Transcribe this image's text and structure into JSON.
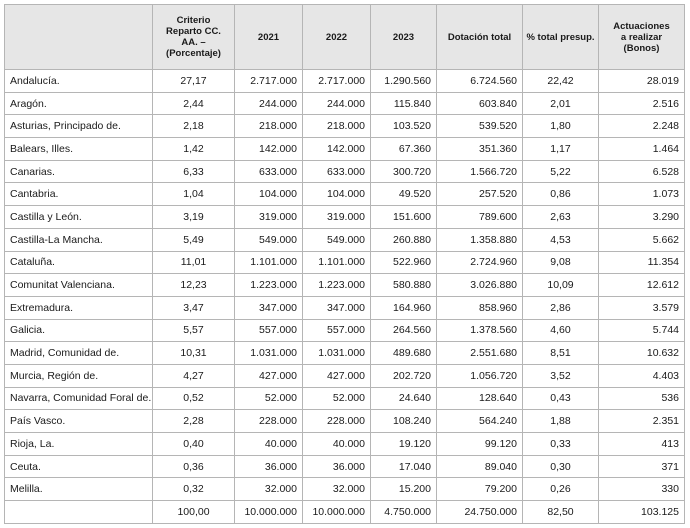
{
  "headers": {
    "region": "",
    "criterio": "Criterio Reparto CC. AA. – (Porcentaje)",
    "y2021": "2021",
    "y2022": "2022",
    "y2023": "2023",
    "dotacion": "Dotación total",
    "pct": "% total presup.",
    "actuaciones": "Actuaciones a realizar (Bonos)"
  },
  "rows": [
    [
      "Andalucía.",
      "27,17",
      "2.717.000",
      "2.717.000",
      "1.290.560",
      "6.724.560",
      "22,42",
      "28.019"
    ],
    [
      "Aragón.",
      "2,44",
      "244.000",
      "244.000",
      "115.840",
      "603.840",
      "2,01",
      "2.516"
    ],
    [
      "Asturias, Principado de.",
      "2,18",
      "218.000",
      "218.000",
      "103.520",
      "539.520",
      "1,80",
      "2.248"
    ],
    [
      "Balears, Illes.",
      "1,42",
      "142.000",
      "142.000",
      "67.360",
      "351.360",
      "1,17",
      "1.464"
    ],
    [
      "Canarias.",
      "6,33",
      "633.000",
      "633.000",
      "300.720",
      "1.566.720",
      "5,22",
      "6.528"
    ],
    [
      "Cantabria.",
      "1,04",
      "104.000",
      "104.000",
      "49.520",
      "257.520",
      "0,86",
      "1.073"
    ],
    [
      "Castilla y León.",
      "3,19",
      "319.000",
      "319.000",
      "151.600",
      "789.600",
      "2,63",
      "3.290"
    ],
    [
      "Castilla-La Mancha.",
      "5,49",
      "549.000",
      "549.000",
      "260.880",
      "1.358.880",
      "4,53",
      "5.662"
    ],
    [
      "Cataluña.",
      "11,01",
      "1.101.000",
      "1.101.000",
      "522.960",
      "2.724.960",
      "9,08",
      "11.354"
    ],
    [
      "Comunitat Valenciana.",
      "12,23",
      "1.223.000",
      "1.223.000",
      "580.880",
      "3.026.880",
      "10,09",
      "12.612"
    ],
    [
      "Extremadura.",
      "3,47",
      "347.000",
      "347.000",
      "164.960",
      "858.960",
      "2,86",
      "3.579"
    ],
    [
      "Galicia.",
      "5,57",
      "557.000",
      "557.000",
      "264.560",
      "1.378.560",
      "4,60",
      "5.744"
    ],
    [
      "Madrid, Comunidad de.",
      "10,31",
      "1.031.000",
      "1.031.000",
      "489.680",
      "2.551.680",
      "8,51",
      "10.632"
    ],
    [
      "Murcia, Región de.",
      "4,27",
      "427.000",
      "427.000",
      "202.720",
      "1.056.720",
      "3,52",
      "4.403"
    ],
    [
      "Navarra, Comunidad Foral de.",
      "0,52",
      "52.000",
      "52.000",
      "24.640",
      "128.640",
      "0,43",
      "536"
    ],
    [
      "País Vasco.",
      "2,28",
      "228.000",
      "228.000",
      "108.240",
      "564.240",
      "1,88",
      "2.351"
    ],
    [
      "Rioja, La.",
      "0,40",
      "40.000",
      "40.000",
      "19.120",
      "99.120",
      "0,33",
      "413"
    ],
    [
      "Ceuta.",
      "0,36",
      "36.000",
      "36.000",
      "17.040",
      "89.040",
      "0,30",
      "371"
    ],
    [
      "Melilla.",
      "0,32",
      "32.000",
      "32.000",
      "15.200",
      "79.200",
      "0,26",
      "330"
    ]
  ],
  "total": [
    "",
    "100,00",
    "10.000.000",
    "10.000.000",
    "4.750.000",
    "24.750.000",
    "82,50",
    "103.125"
  ]
}
